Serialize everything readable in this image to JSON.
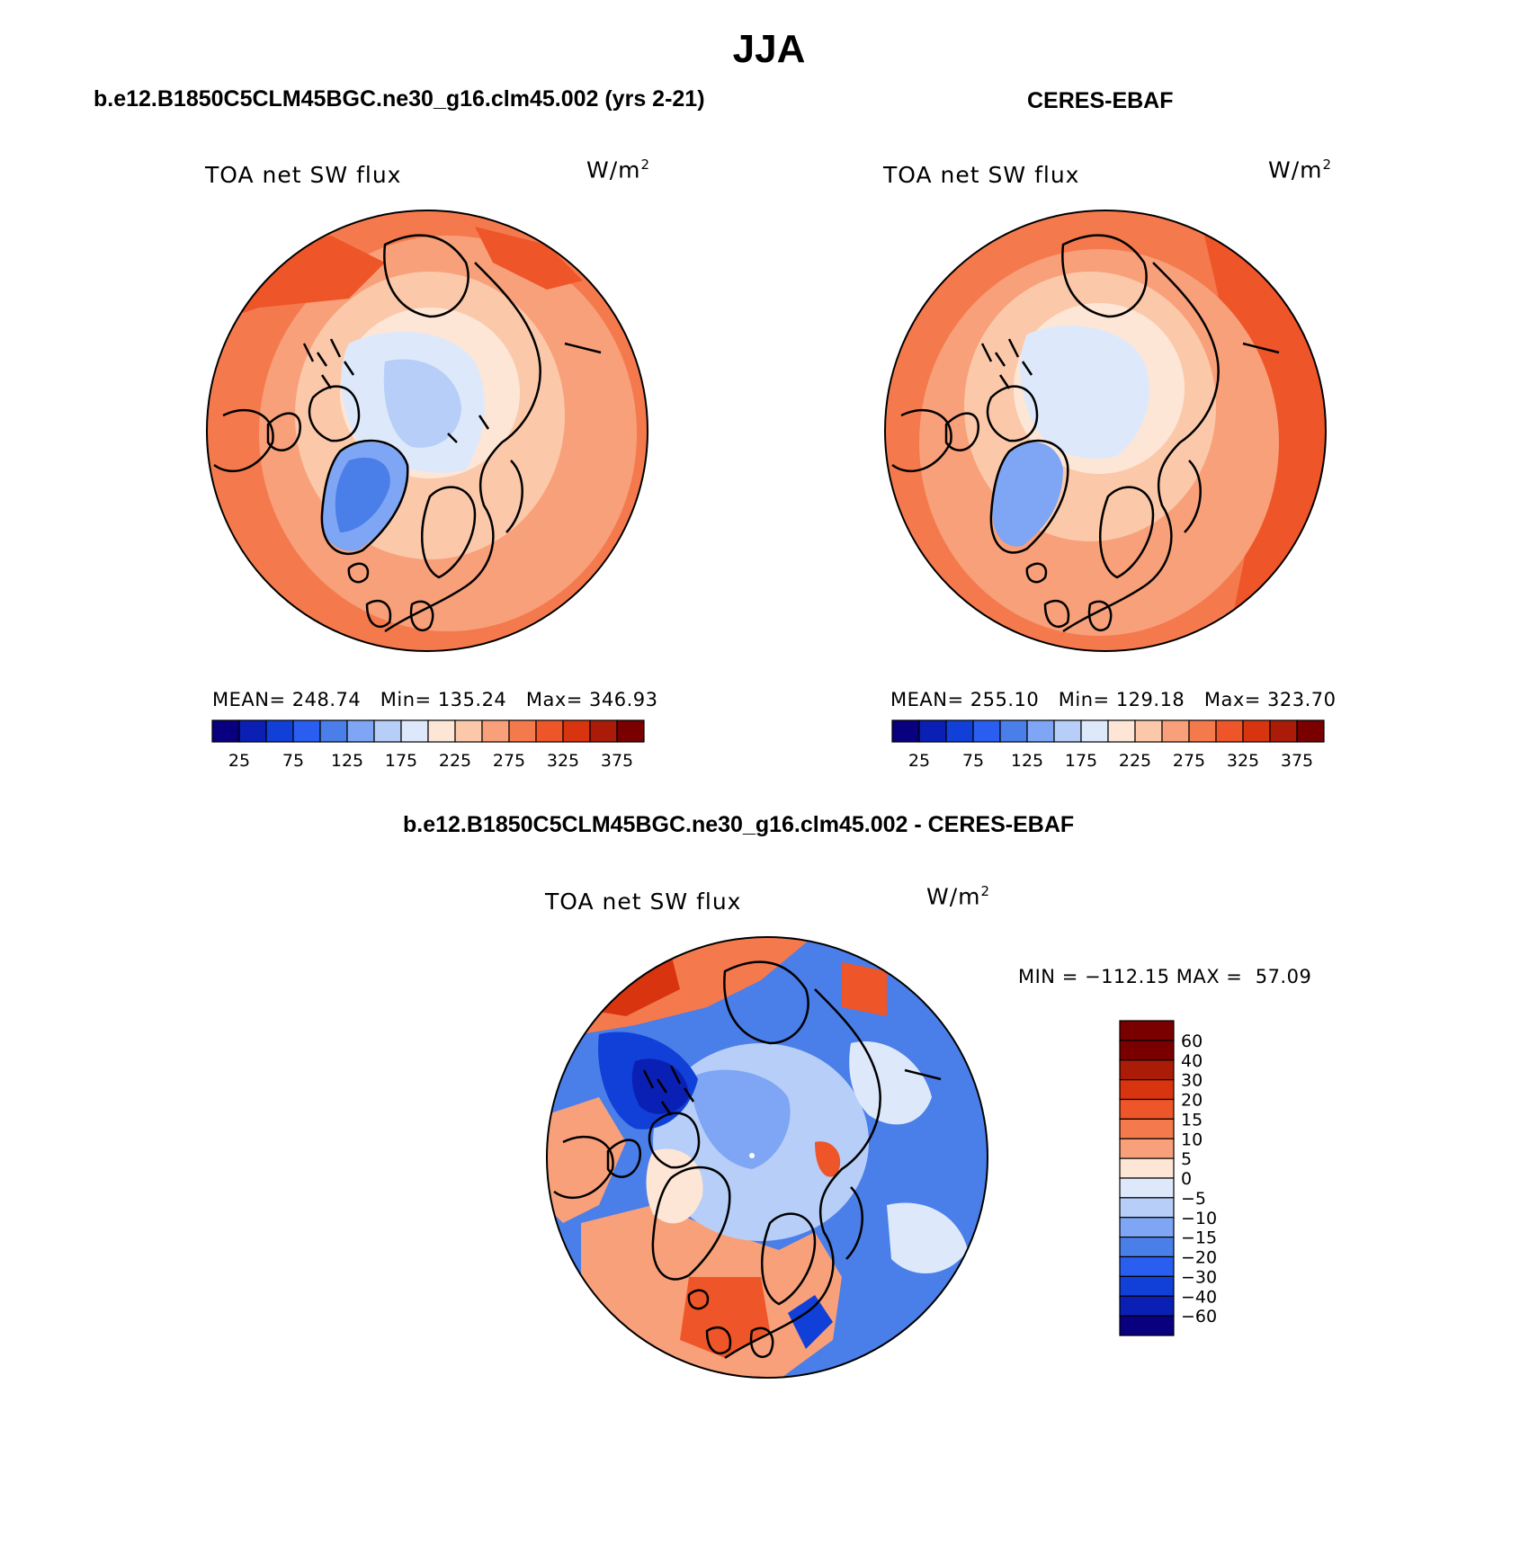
{
  "season": "JJA",
  "panels": {
    "model": {
      "case_title": "b.e12.B1850C5CLM45BGC.ne30_g16.clm45.002 (yrs 2-21)",
      "variable": "TOA net SW flux",
      "units_base": "W/m",
      "units_sup": "2",
      "mean_label": "MEAN=",
      "mean": "248.74",
      "min_label": "Min=",
      "min": "135.24",
      "max_label": "Max=",
      "max": "346.93"
    },
    "obs": {
      "case_title": "CERES-EBAF",
      "variable": "TOA net SW flux",
      "units_base": "W/m",
      "units_sup": "2",
      "mean_label": "MEAN=",
      "mean": "255.10",
      "min_label": "Min=",
      "min": "129.18",
      "max_label": "Max=",
      "max": "323.70"
    },
    "diff": {
      "case_title": "b.e12.B1850C5CLM45BGC.ne30_g16.clm45.002 - CERES-EBAF",
      "variable": "TOA net SW flux",
      "units_base": "W/m",
      "units_sup": "2",
      "minmax_text": "MIN = −112.15 MAX =  57.09"
    }
  },
  "colorbar_abs": {
    "colors": [
      "#08007e",
      "#0a20b4",
      "#1040d8",
      "#2a5ef0",
      "#4a7ee8",
      "#7ea6f4",
      "#b6cef8",
      "#dde9fb",
      "#fde6d6",
      "#fbc9aa",
      "#f8a07a",
      "#f47a4e",
      "#ee5528",
      "#d83410",
      "#ab1c08",
      "#7a0000"
    ],
    "tick_labels": [
      "25",
      "75",
      "125",
      "175",
      "225",
      "275",
      "325",
      "375"
    ]
  },
  "colorbar_diff": {
    "colors": [
      "#7a0000",
      "#ab1c08",
      "#d83410",
      "#ee5528",
      "#f47a4e",
      "#f8a07a",
      "#fde6d6",
      "#dde9fb",
      "#b6cef8",
      "#7ea6f4",
      "#4a7ee8",
      "#2a5ef0",
      "#1040d8",
      "#0a20b4",
      "#08007e"
    ],
    "tick_labels": [
      "60",
      "40",
      "30",
      "20",
      "15",
      "10",
      "5",
      "0",
      "−5",
      "−10",
      "−15",
      "−20",
      "−30",
      "−40",
      "−60"
    ]
  }
}
